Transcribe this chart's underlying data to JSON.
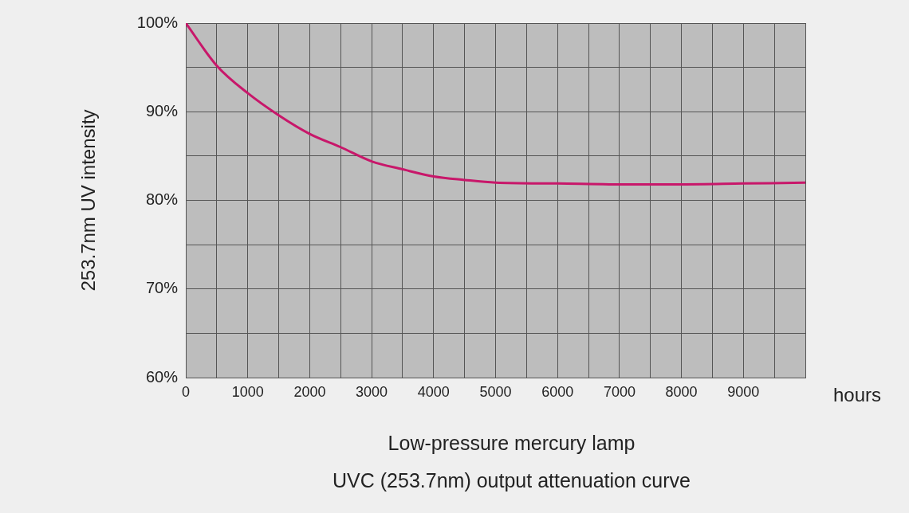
{
  "chart_data": {
    "type": "line",
    "title": "Low-pressure mercury lamp",
    "subtitle": "UVC (253.7nm) output attenuation curve",
    "xlabel": "hours",
    "ylabel": "253.7nm UV intensity",
    "x": [
      0,
      500,
      1000,
      1500,
      2000,
      2500,
      3000,
      3500,
      4000,
      4500,
      5000,
      6000,
      7000,
      8000,
      9000,
      10000
    ],
    "series": [
      {
        "color": "#c8176a",
        "values": [
          100,
          95.2,
          92.1,
          89.6,
          87.5,
          86.0,
          84.4,
          83.5,
          82.7,
          82.3,
          82.0,
          81.9,
          81.8,
          81.8,
          81.9,
          82.0
        ]
      }
    ],
    "xlim": [
      0,
      10000
    ],
    "xticks": [
      0,
      {
        "value": 500,
        "label": null
      },
      1000,
      {
        "value": 1500,
        "label": null
      },
      2000,
      {
        "value": 2500,
        "label": null
      },
      3000,
      {
        "value": 3500,
        "label": null
      },
      4000,
      {
        "value": 4500,
        "label": null
      },
      5000,
      {
        "value": 5500,
        "label": null
      },
      6000,
      {
        "value": 6500,
        "label": null
      },
      7000,
      {
        "value": 7500,
        "label": null
      },
      8000,
      {
        "value": 8500,
        "label": null
      },
      9000,
      {
        "value": 9500,
        "label": null
      },
      {
        "value": 10000,
        "label": null
      }
    ],
    "ylim": [
      60,
      100
    ],
    "yticks": [
      {
        "value": 60,
        "label": "60%"
      },
      {
        "value": 65,
        "label": null
      },
      {
        "value": 70,
        "label": "70%"
      },
      {
        "value": 75,
        "label": null
      },
      {
        "value": 80,
        "label": "80%"
      },
      {
        "value": 85,
        "label": null
      },
      {
        "value": 90,
        "label": "90%"
      },
      {
        "value": 95,
        "label": null
      },
      {
        "value": 100,
        "label": "100%"
      }
    ],
    "grid": true,
    "legend": false,
    "marker": "none",
    "line_style": "solid"
  }
}
